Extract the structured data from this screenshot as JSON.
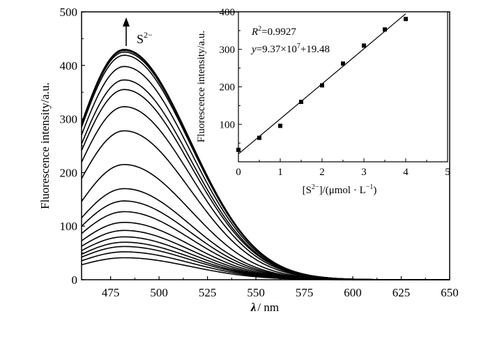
{
  "chart_data": [
    {
      "type": "line",
      "title": "",
      "xlabel_symbol": "λ",
      "xlabel_unit": "/ nm",
      "ylabel": "Fluorescence intensity/a.u.",
      "xlim": [
        460,
        650
      ],
      "ylim": [
        0,
        500
      ],
      "xticks": [
        "475",
        "500",
        "525",
        "550",
        "575",
        "600",
        "625",
        "650"
      ],
      "yticks": [
        "0",
        "100",
        "200",
        "300",
        "400",
        "500"
      ],
      "peak_x": 482,
      "annotation": {
        "arrow": "up",
        "label_base": "S",
        "label_sup": "2−"
      },
      "series_peaks": [
        41,
        52,
        62,
        70,
        80,
        92,
        107,
        127,
        147,
        170,
        215,
        278,
        323,
        355,
        373,
        398,
        419,
        425,
        428,
        430
      ]
    },
    {
      "type": "scatter",
      "title": "",
      "xlabel_prefix": "[S",
      "xlabel_sup1": "2−",
      "xlabel_mid": "]/(μmol · L",
      "xlabel_sup2": "−1",
      "xlabel_end": ")",
      "ylabel": "Fluorescence intensity/a.u.",
      "xlim": [
        0,
        5
      ],
      "ylim": [
        0,
        400
      ],
      "xticks": [
        "0",
        "1",
        "2",
        "3",
        "4",
        "5"
      ],
      "yticks": [
        "100",
        "200",
        "300",
        "400"
      ],
      "points": [
        {
          "x": 0,
          "y": 32
        },
        {
          "x": 0.5,
          "y": 64
        },
        {
          "x": 1,
          "y": 96
        },
        {
          "x": 1.5,
          "y": 160
        },
        {
          "x": 2,
          "y": 204
        },
        {
          "x": 2.5,
          "y": 262
        },
        {
          "x": 3,
          "y": 310
        },
        {
          "x": 3.5,
          "y": 353
        },
        {
          "x": 4,
          "y": 381
        }
      ],
      "fit": {
        "r2_symbol": "R",
        "r2_sup": "2",
        "r2_value": "=0.9927",
        "eq_symbol": "y",
        "eq_part1": "=9.37×10",
        "eq_sup": "7",
        "eq_part2": "+19.48",
        "line_x": [
          0,
          4
        ],
        "line_y": [
          21,
          395
        ]
      }
    }
  ]
}
